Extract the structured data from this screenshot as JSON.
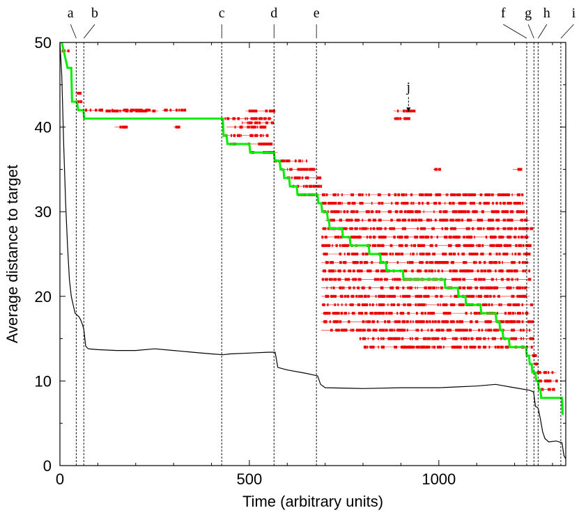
{
  "chart_data": {
    "type": "line",
    "xlabel": "Time (arbitrary units)",
    "ylabel": "Average distance to target",
    "xlim": [
      0,
      1335
    ],
    "ylim": [
      0,
      50
    ],
    "x_ticks": [
      0,
      500,
      1000
    ],
    "y_ticks": [
      0,
      10,
      20,
      30,
      40,
      50
    ],
    "grid": false,
    "legend": "none",
    "colors": {
      "average": "#000000",
      "best": "#00ee00",
      "candidates": "#ee0000",
      "markers": "#000000"
    },
    "series": [
      {
        "style": "black-line",
        "points": [
          [
            0,
            50
          ],
          [
            5,
            46
          ],
          [
            10,
            38
          ],
          [
            15,
            31
          ],
          [
            20,
            26
          ],
          [
            25,
            22
          ],
          [
            30,
            20
          ],
          [
            35,
            19
          ],
          [
            40,
            18
          ],
          [
            45,
            17.8
          ],
          [
            50,
            17.6
          ],
          [
            55,
            17.2
          ],
          [
            60,
            16.6
          ],
          [
            63,
            16.1
          ],
          [
            68,
            14.1
          ],
          [
            75,
            13.8
          ],
          [
            100,
            13.7
          ],
          [
            150,
            13.6
          ],
          [
            200,
            13.6
          ],
          [
            250,
            13.8
          ],
          [
            300,
            13.6
          ],
          [
            350,
            13.4
          ],
          [
            400,
            13.2
          ],
          [
            430,
            13.1
          ],
          [
            450,
            13.2
          ],
          [
            500,
            13.3
          ],
          [
            550,
            13.4
          ],
          [
            568,
            13.4
          ],
          [
            575,
            11.6
          ],
          [
            600,
            11.3
          ],
          [
            650,
            10.9
          ],
          [
            680,
            10.6
          ],
          [
            688,
            9.6
          ],
          [
            700,
            9.2
          ],
          [
            800,
            9.1
          ],
          [
            900,
            9.2
          ],
          [
            1000,
            9.2
          ],
          [
            1050,
            9.3
          ],
          [
            1100,
            9.4
          ],
          [
            1150,
            9.6
          ],
          [
            1200,
            9.2
          ],
          [
            1240,
            8.9
          ],
          [
            1250,
            8.7
          ],
          [
            1255,
            7.0
          ],
          [
            1262,
            6.8
          ],
          [
            1268,
            5.5
          ],
          [
            1274,
            4.0
          ],
          [
            1280,
            3.2
          ],
          [
            1290,
            2.8
          ],
          [
            1310,
            2.9
          ],
          [
            1325,
            2.7
          ],
          [
            1330,
            1.2
          ],
          [
            1335,
            0.8
          ]
        ]
      },
      {
        "style": "green-step",
        "points": [
          [
            5,
            50
          ],
          [
            10,
            49
          ],
          [
            15,
            48
          ],
          [
            20,
            47
          ],
          [
            30,
            47
          ],
          [
            32,
            43
          ],
          [
            45,
            43
          ],
          [
            48,
            42
          ],
          [
            62,
            42
          ],
          [
            64,
            41
          ],
          [
            430,
            41
          ],
          [
            432,
            39
          ],
          [
            440,
            39
          ],
          [
            442,
            38
          ],
          [
            500,
            38
          ],
          [
            502,
            37
          ],
          [
            565,
            37
          ],
          [
            567,
            36
          ],
          [
            580,
            36
          ],
          [
            582,
            35
          ],
          [
            590,
            35
          ],
          [
            592,
            34
          ],
          [
            605,
            34
          ],
          [
            607,
            33
          ],
          [
            625,
            33
          ],
          [
            627,
            32
          ],
          [
            680,
            32
          ],
          [
            682,
            31
          ],
          [
            690,
            31
          ],
          [
            692,
            30
          ],
          [
            705,
            30
          ],
          [
            707,
            29
          ],
          [
            710,
            29
          ],
          [
            712,
            28
          ],
          [
            745,
            28
          ],
          [
            747,
            27
          ],
          [
            765,
            27
          ],
          [
            767,
            26
          ],
          [
            815,
            26
          ],
          [
            817,
            25
          ],
          [
            845,
            25
          ],
          [
            847,
            24
          ],
          [
            860,
            24
          ],
          [
            862,
            23
          ],
          [
            905,
            23
          ],
          [
            907,
            22
          ],
          [
            1015,
            22
          ],
          [
            1017,
            21
          ],
          [
            1050,
            21
          ],
          [
            1052,
            20
          ],
          [
            1070,
            20
          ],
          [
            1072,
            19
          ],
          [
            1110,
            19
          ],
          [
            1112,
            18
          ],
          [
            1150,
            18
          ],
          [
            1152,
            17
          ],
          [
            1160,
            17
          ],
          [
            1162,
            16
          ],
          [
            1168,
            16
          ],
          [
            1170,
            15
          ],
          [
            1185,
            15
          ],
          [
            1187,
            14
          ],
          [
            1230,
            14
          ],
          [
            1232,
            13
          ],
          [
            1238,
            13
          ],
          [
            1240,
            12
          ],
          [
            1245,
            12
          ],
          [
            1247,
            11
          ],
          [
            1255,
            11
          ],
          [
            1257,
            10
          ],
          [
            1262,
            10
          ],
          [
            1264,
            9
          ],
          [
            1268,
            9
          ],
          [
            1270,
            8
          ],
          [
            1325,
            8
          ],
          [
            1327,
            6
          ]
        ]
      }
    ],
    "candidate_rows": [
      {
        "y": 49,
        "spans": [
          [
            5,
            25
          ]
        ]
      },
      {
        "y": 44,
        "spans": [
          [
            40,
            55
          ]
        ]
      },
      {
        "y": 43,
        "spans": [
          [
            35,
            60
          ]
        ]
      },
      {
        "y": 42,
        "spans": [
          [
            60,
            110
          ],
          [
            130,
            240
          ],
          [
            270,
            330
          ]
        ]
      },
      {
        "y": 41.9,
        "spans": [
          [
            120,
            260
          ],
          [
            490,
            560
          ],
          [
            880,
            930
          ]
        ]
      },
      {
        "y": 41,
        "spans": [
          [
            430,
            560
          ],
          [
            880,
            920
          ]
        ]
      },
      {
        "y": 40.5,
        "spans": [
          [
            480,
            560
          ]
        ]
      },
      {
        "y": 40,
        "spans": [
          [
            145,
            180
          ],
          [
            300,
            310
          ],
          [
            440,
            540
          ]
        ]
      },
      {
        "y": 39,
        "spans": [
          [
            430,
            550
          ]
        ]
      },
      {
        "y": 38,
        "spans": [
          [
            440,
            560
          ]
        ]
      },
      {
        "y": 37,
        "spans": [
          [
            500,
            575
          ]
        ]
      },
      {
        "y": 36,
        "spans": [
          [
            565,
            650
          ]
        ]
      },
      {
        "y": 35,
        "spans": [
          [
            580,
            680
          ],
          [
            985,
            1000
          ],
          [
            1195,
            1220
          ]
        ]
      },
      {
        "y": 34,
        "spans": [
          [
            590,
            690
          ]
        ]
      },
      {
        "y": 33,
        "spans": [
          [
            605,
            690
          ]
        ]
      },
      {
        "y": 32,
        "spans": [
          [
            625,
            1220
          ]
        ]
      },
      {
        "y": 31,
        "spans": [
          [
            690,
            1230
          ]
        ]
      },
      {
        "y": 30,
        "spans": [
          [
            695,
            1235
          ]
        ]
      },
      {
        "y": 29,
        "spans": [
          [
            700,
            1240
          ]
        ]
      },
      {
        "y": 28,
        "spans": [
          [
            690,
            1240
          ]
        ]
      },
      {
        "y": 27,
        "spans": [
          [
            690,
            1240
          ]
        ]
      },
      {
        "y": 26,
        "spans": [
          [
            690,
            1240
          ]
        ]
      },
      {
        "y": 25,
        "spans": [
          [
            690,
            1240
          ]
        ]
      },
      {
        "y": 24,
        "spans": [
          [
            690,
            1240
          ]
        ]
      },
      {
        "y": 23,
        "spans": [
          [
            690,
            1240
          ]
        ]
      },
      {
        "y": 22,
        "spans": [
          [
            690,
            1240
          ]
        ]
      },
      {
        "y": 21,
        "spans": [
          [
            690,
            1240
          ]
        ]
      },
      {
        "y": 20,
        "spans": [
          [
            690,
            1240
          ]
        ]
      },
      {
        "y": 19,
        "spans": [
          [
            690,
            1245
          ]
        ]
      },
      {
        "y": 18,
        "spans": [
          [
            690,
            1240
          ]
        ]
      },
      {
        "y": 17,
        "spans": [
          [
            690,
            1245
          ]
        ]
      },
      {
        "y": 16,
        "spans": [
          [
            690,
            1245
          ]
        ]
      },
      {
        "y": 15,
        "spans": [
          [
            790,
            1245
          ]
        ]
      },
      {
        "y": 14,
        "spans": [
          [
            800,
            1245
          ]
        ]
      },
      {
        "y": 13,
        "spans": [
          [
            1240,
            1260
          ]
        ]
      },
      {
        "y": 12,
        "spans": [
          [
            1245,
            1265
          ]
        ]
      },
      {
        "y": 11,
        "spans": [
          [
            1255,
            1310
          ]
        ]
      },
      {
        "y": 10,
        "spans": [
          [
            1262,
            1315
          ]
        ]
      },
      {
        "y": 9,
        "spans": [
          [
            1265,
            1300
          ]
        ]
      }
    ],
    "markers": [
      {
        "label": "a",
        "x": 43,
        "label_x": 28
      },
      {
        "label": "b",
        "x": 63,
        "label_x": 92
      },
      {
        "label": "c",
        "x": 427,
        "label_x": 427
      },
      {
        "label": "d",
        "x": 565,
        "label_x": 565
      },
      {
        "label": "e",
        "x": 677,
        "label_x": 677
      },
      {
        "label": "f",
        "x": 1232,
        "label_x": 1170
      },
      {
        "label": "g",
        "x": 1251,
        "label_x": 1236
      },
      {
        "label": "h",
        "x": 1262,
        "label_x": 1285
      },
      {
        "label": "i",
        "x": 1322,
        "label_x": 1356
      }
    ],
    "annotations": [
      {
        "label": "j",
        "x": 920,
        "y": 47,
        "arrow_to": [
          920,
          41.5
        ]
      }
    ]
  }
}
